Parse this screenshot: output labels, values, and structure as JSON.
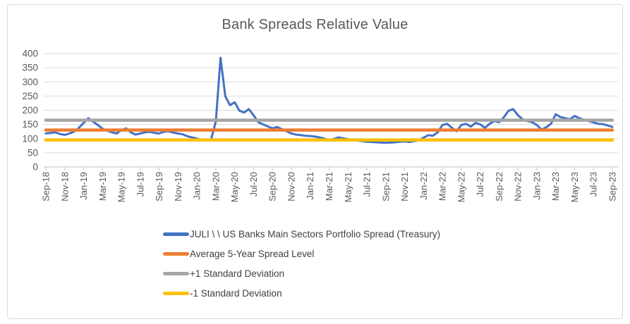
{
  "title": "Bank Spreads Relative Value",
  "colors": {
    "series_blue": "#4472C4",
    "series_orange": "#ED7D31",
    "series_gray": "#A5A5A5",
    "series_yellow": "#FFC000",
    "title_text": "#595959",
    "axis_text": "#595959",
    "gridline": "#DCDCDC",
    "axis_line": "#C6C6C6",
    "legend_text": "#404040",
    "frame_border": "#D9D9D9"
  },
  "chart_data": {
    "type": "line",
    "title": "Bank Spreads Relative Value",
    "xlabel": "",
    "ylabel": "",
    "ylim": [
      0,
      400
    ],
    "y_ticks": [
      0,
      50,
      100,
      150,
      200,
      250,
      300,
      350,
      400
    ],
    "grid": true,
    "legend_position": "bottom-left-stacked",
    "x_tick_labels": [
      "Sep-18",
      "Nov-18",
      "Jan-19",
      "Mar-19",
      "May-19",
      "Jul-19",
      "Sep-19",
      "Nov-19",
      "Jan-20",
      "Mar-20",
      "May-20",
      "Jul-20",
      "Sep-20",
      "Nov-20",
      "Jan-21",
      "Mar-21",
      "May-21",
      "Jul-21",
      "Sep-21",
      "Nov-21",
      "Jan-22",
      "Mar-22",
      "May-22",
      "Jul-22",
      "Sep-22",
      "Nov-22",
      "Jan-23",
      "Mar-23",
      "May-23",
      "Jul-23",
      "Sep-23"
    ],
    "sampling_note": "main series sampled semi-monthly from Sep-2018 to Sep-2023, values in spread (bp)",
    "series": [
      {
        "name": "JULI \\ \\ US Banks Main Sectors Portfolio Spread (Treasury)",
        "color": "#4472C4",
        "kind": "line",
        "values": [
          118,
          120,
          122,
          116,
          113,
          118,
          125,
          138,
          155,
          172,
          160,
          148,
          135,
          128,
          122,
          118,
          130,
          136,
          122,
          114,
          118,
          122,
          124,
          120,
          118,
          124,
          126,
          121,
          118,
          115,
          108,
          104,
          100,
          96,
          94,
          97,
          160,
          385,
          250,
          218,
          228,
          198,
          192,
          204,
          182,
          158,
          150,
          143,
          136,
          141,
          133,
          126,
          118,
          114,
          112,
          110,
          109,
          107,
          104,
          100,
          95,
          99,
          104,
          101,
          98,
          96,
          93,
          91,
          89,
          88,
          87,
          86,
          85,
          86,
          87,
          89,
          90,
          88,
          91,
          94,
          103,
          112,
          110,
          122,
          148,
          152,
          138,
          126,
          148,
          152,
          142,
          155,
          150,
          138,
          152,
          162,
          158,
          175,
          198,
          204,
          182,
          168,
          162,
          158,
          148,
          132,
          140,
          152,
          186,
          176,
          172,
          168,
          180,
          172,
          166,
          162,
          157,
          152,
          151,
          146,
          141
        ]
      },
      {
        "name": "Average 5-Year Spread Level",
        "color": "#ED7D31",
        "kind": "constant",
        "value": 130
      },
      {
        "name": "+1 Standard Deviation",
        "color": "#A5A5A5",
        "kind": "constant",
        "value": 165
      },
      {
        "name": "-1 Standard Deviation",
        "color": "#FFC000",
        "kind": "constant",
        "value": 95
      }
    ]
  }
}
